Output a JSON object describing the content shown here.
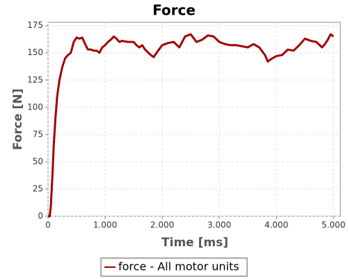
{
  "chart_data": {
    "type": "line",
    "title": "Force",
    "xlabel": "Time [ms]",
    "ylabel": "Force [N]",
    "x": [
      0,
      30,
      50,
      80,
      100,
      130,
      160,
      200,
      250,
      300,
      350,
      400,
      450,
      500,
      550,
      600,
      650,
      700,
      750,
      800,
      850,
      900,
      950,
      1000,
      1050,
      1100,
      1150,
      1200,
      1250,
      1300,
      1400,
      1500,
      1550,
      1600,
      1650,
      1700,
      1800,
      1850,
      1900,
      2000,
      2100,
      2200,
      2300,
      2400,
      2500,
      2600,
      2700,
      2800,
      2900,
      3000,
      3100,
      3200,
      3300,
      3400,
      3500,
      3600,
      3700,
      3800,
      3850,
      3900,
      4000,
      4100,
      4200,
      4300,
      4400,
      4500,
      4600,
      4700,
      4800,
      4850,
      4900,
      4950,
      5000
    ],
    "series": [
      {
        "name": "force - All motor units",
        "color": "#a00000",
        "values": [
          0,
          0,
          10,
          40,
          65,
          90,
          110,
          125,
          137,
          145,
          148,
          150,
          160,
          164,
          163,
          164,
          158,
          153,
          153,
          152,
          152,
          150,
          155,
          157,
          160,
          162,
          165,
          163,
          160,
          161,
          160,
          160,
          157,
          155,
          157,
          153,
          148,
          146,
          150,
          157,
          159,
          160,
          155,
          165,
          167,
          160,
          162,
          166,
          165,
          160,
          158,
          157,
          157,
          156,
          155,
          158,
          155,
          148,
          142,
          144,
          147,
          148,
          153,
          152,
          157,
          163,
          161,
          160,
          155,
          158,
          162,
          167,
          165
        ]
      }
    ],
    "xlim": [
      0,
      5120
    ],
    "ylim": [
      0,
      178
    ],
    "xticks": [
      0,
      {
        "value": 1000,
        "label": "1.000"
      },
      {
        "value": 2000,
        "label": "2.000"
      },
      {
        "value": 3000,
        "label": "3.000"
      },
      {
        "value": 4000,
        "label": "4.000"
      },
      {
        "value": 5000,
        "label": "5.000"
      }
    ],
    "yticks": [
      0,
      25,
      50,
      75,
      100,
      125,
      150,
      175
    ],
    "grid": true
  }
}
